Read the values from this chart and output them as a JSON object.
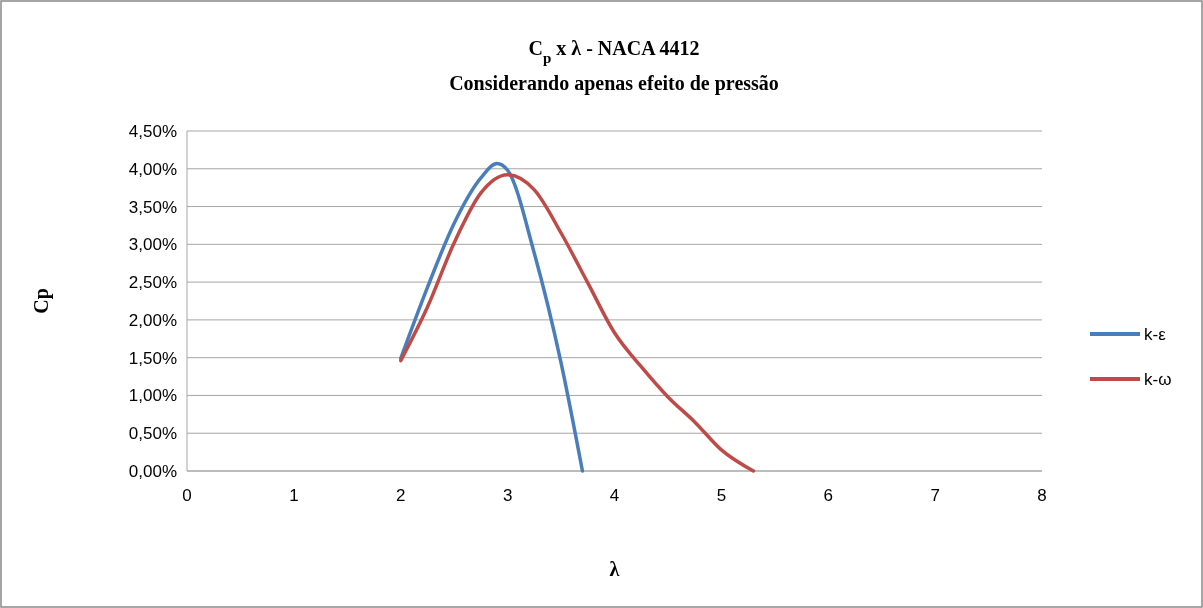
{
  "chart_data": {
    "type": "line",
    "title": "C$_{p}$ x λ - NACA 4412",
    "subtitle": "Considerando apenas efeito de pressão",
    "xlabel": "λ",
    "ylabel": "Cp",
    "xlim": [
      0,
      8
    ],
    "xticks": [
      0,
      1,
      2,
      3,
      4,
      5,
      6,
      7,
      8
    ],
    "ylim": [
      0,
      0.045
    ],
    "yticks": [
      {
        "value": 0,
        "label": "0,00%"
      },
      {
        "value": 0.005,
        "label": "0,50%"
      },
      {
        "value": 0.01,
        "label": "1,00%"
      },
      {
        "value": 0.015,
        "label": "1,50%"
      },
      {
        "value": 0.02,
        "label": "2,00%"
      },
      {
        "value": 0.025,
        "label": "2,50%"
      },
      {
        "value": 0.03,
        "label": "3,00%"
      },
      {
        "value": 0.035,
        "label": "3,50%"
      },
      {
        "value": 0.04,
        "label": "4,00%"
      },
      {
        "value": 0.045,
        "label": "4,50%"
      }
    ],
    "grid": "y",
    "legend": "right",
    "marker": "none",
    "series": [
      {
        "name": "k-ε",
        "color": "#4a7ebb",
        "x": [
          2,
          2.25,
          2.5,
          2.75,
          2.9,
          3,
          3.25,
          3.5,
          3.7
        ],
        "values": [
          0.0149,
          0.0243,
          0.0328,
          0.0388,
          0.0407,
          0.0398,
          0.0288,
          0.0143,
          0
        ]
      },
      {
        "name": "k-ω",
        "color": "#be4b48",
        "x": [
          2,
          2.25,
          2.5,
          2.75,
          3,
          3.25,
          3.5,
          3.75,
          4,
          4.25,
          4.5,
          4.75,
          5,
          5.3
        ],
        "values": [
          0.0146,
          0.0217,
          0.0302,
          0.0368,
          0.0392,
          0.0372,
          0.0315,
          0.0249,
          0.0183,
          0.0138,
          0.0098,
          0.0065,
          0.0028,
          0
        ]
      }
    ]
  }
}
